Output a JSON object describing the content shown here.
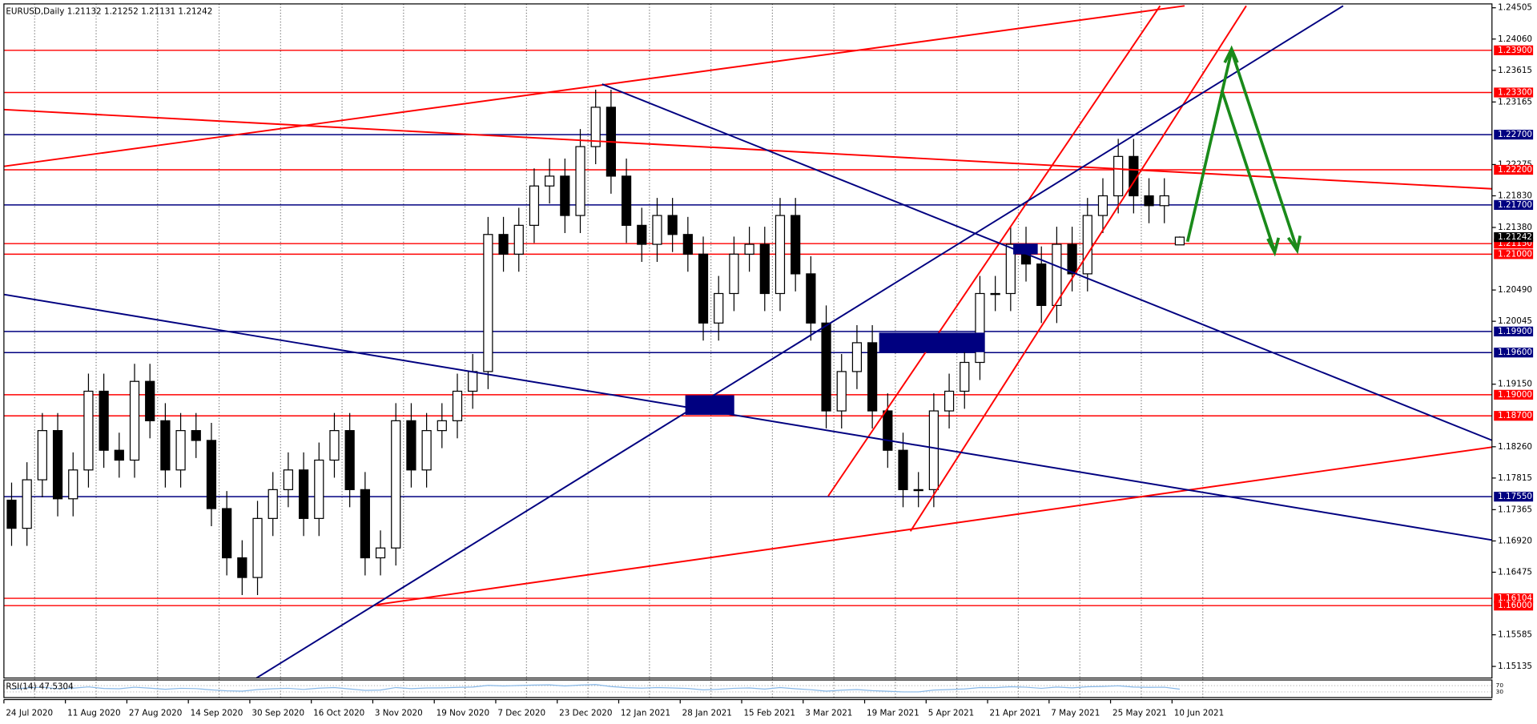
{
  "chart_data": {
    "type": "candlestick",
    "title": "EURUSD,Daily",
    "categories": [
      "24 Jul 2020",
      null,
      null,
      null,
      "11 Aug 2020",
      null,
      null,
      null,
      "27 Aug 2020",
      null,
      null,
      null,
      "14 Sep 2020",
      null,
      null,
      null,
      "30 Sep 2020",
      null,
      null,
      null,
      "16 Oct 2020",
      null,
      null,
      null,
      "3 Nov 2020",
      null,
      null,
      null,
      "19 Nov 2020",
      null,
      null,
      null,
      "7 Dec 2020",
      null,
      null,
      null,
      "23 Dec 2020",
      null,
      null,
      null,
      "12 Jan 2021",
      null,
      null,
      null,
      "28 Jan 2021",
      null,
      null,
      null,
      "15 Feb 2021",
      null,
      null,
      null,
      "3 Mar 2021",
      null,
      null,
      null,
      "19 Mar 2021",
      null,
      null,
      null,
      "5 Apr 2021",
      null,
      null,
      null,
      "21 Apr 2021",
      null,
      null,
      null,
      "7 May 2021",
      null,
      null,
      null,
      "25 May 2021",
      null,
      null,
      null,
      "10 Jun 2021"
    ],
    "open": [
      1.175,
      1.171,
      1.1779,
      1.1849,
      1.1752,
      1.1793,
      1.1905,
      1.1821,
      1.1807,
      1.1919,
      1.1863,
      1.1793,
      1.1849,
      1.1835,
      1.1738,
      1.1668,
      1.164,
      1.1724,
      1.1765,
      1.1793,
      1.1724,
      1.1807,
      1.1849,
      1.1765,
      1.1668,
      1.1682,
      1.1863,
      1.1793,
      1.1849,
      1.1863,
      1.1905,
      1.1933,
      1.2128,
      1.21,
      1.2141,
      1.2197,
      1.2211,
      1.2155,
      1.2253,
      1.2309,
      1.2211,
      1.2141,
      1.2114,
      1.2155,
      1.2128,
      1.21,
      1.2002,
      1.2044,
      1.21,
      1.2114,
      1.2044,
      1.2155,
      1.2072,
      1.2002,
      1.1877,
      1.1933,
      1.1974,
      1.1877,
      1.1821,
      1.1765,
      1.1765,
      1.1877,
      1.1905,
      1.1946,
      1.2044,
      1.2044,
      1.2114,
      1.2086,
      1.2027,
      1.2114,
      1.2072,
      1.2155,
      1.2183,
      1.2239,
      1.2183,
      1.2169,
      1.21132
    ],
    "high": [
      1.1775,
      1.1804,
      1.1874,
      1.1874,
      1.1818,
      1.193,
      1.193,
      1.1846,
      1.1944,
      1.1944,
      1.1888,
      1.1874,
      1.1874,
      1.186,
      1.1763,
      1.1693,
      1.1749,
      1.179,
      1.1818,
      1.1818,
      1.1832,
      1.1874,
      1.1874,
      1.179,
      1.1707,
      1.1888,
      1.1888,
      1.1874,
      1.1888,
      1.193,
      1.1958,
      1.2153,
      1.2153,
      1.2166,
      1.2222,
      1.2236,
      1.2236,
      1.2278,
      1.2334,
      1.2334,
      1.2236,
      1.2166,
      1.218,
      1.218,
      1.2153,
      1.2125,
      1.2069,
      1.2125,
      1.2139,
      1.2139,
      1.218,
      1.218,
      1.2097,
      1.2027,
      1.1958,
      1.1999,
      1.1999,
      1.1902,
      1.1846,
      1.179,
      1.1902,
      1.193,
      1.1971,
      1.2069,
      1.2069,
      1.2139,
      1.2139,
      1.2111,
      1.2139,
      1.2139,
      1.218,
      1.2208,
      1.2264,
      1.2264,
      1.2208,
      1.2208,
      1.21252
    ],
    "low": [
      1.1685,
      1.1685,
      1.1754,
      1.1727,
      1.1727,
      1.1768,
      1.1796,
      1.1782,
      1.1782,
      1.1838,
      1.1768,
      1.1768,
      1.181,
      1.1713,
      1.1643,
      1.1615,
      1.1615,
      1.1699,
      1.174,
      1.1699,
      1.1699,
      1.1782,
      1.174,
      1.1643,
      1.1643,
      1.1657,
      1.1768,
      1.1768,
      1.1824,
      1.1838,
      1.188,
      1.1908,
      1.2075,
      1.2075,
      1.2116,
      1.2172,
      1.213,
      1.213,
      1.2228,
      1.2186,
      1.2116,
      1.2089,
      1.2089,
      1.2103,
      1.2075,
      1.1977,
      1.1977,
      1.2019,
      1.2075,
      1.2019,
      1.2019,
      1.2047,
      1.1977,
      1.1852,
      1.1852,
      1.1908,
      1.1852,
      1.1796,
      1.174,
      1.174,
      1.174,
      1.1852,
      1.188,
      1.1921,
      1.2019,
      1.2019,
      1.2061,
      1.2002,
      1.2002,
      1.2047,
      1.2047,
      1.213,
      1.2158,
      1.2158,
      1.2144,
      1.2144,
      1.21131
    ],
    "close": [
      1.171,
      1.1779,
      1.1849,
      1.1752,
      1.1793,
      1.1905,
      1.1821,
      1.1807,
      1.1919,
      1.1863,
      1.1793,
      1.1849,
      1.1835,
      1.1738,
      1.1668,
      1.164,
      1.1724,
      1.1765,
      1.1793,
      1.1724,
      1.1807,
      1.1849,
      1.1765,
      1.1668,
      1.1682,
      1.1863,
      1.1793,
      1.1849,
      1.1863,
      1.1905,
      1.1933,
      1.2128,
      1.21,
      1.2141,
      1.2197,
      1.2211,
      1.2155,
      1.2253,
      1.2309,
      1.2211,
      1.2141,
      1.2114,
      1.2155,
      1.2128,
      1.21,
      1.2002,
      1.2044,
      1.21,
      1.2114,
      1.2044,
      1.2155,
      1.2072,
      1.2002,
      1.1877,
      1.1933,
      1.1974,
      1.1877,
      1.1821,
      1.1765,
      1.1765,
      1.1877,
      1.1905,
      1.1946,
      1.2044,
      1.2044,
      1.2114,
      1.2086,
      1.2027,
      1.2114,
      1.2072,
      1.2155,
      1.2183,
      1.2239,
      1.2183,
      1.2169,
      1.2183,
      1.21242
    ],
    "up_color": "#ffffff",
    "down_color": "#000000",
    "ylim": [
      1.1497,
      1.2456
    ],
    "yticks": [
      1.24505,
      {
        "value": 1.2406,
        "label": "1.24060"
      },
      1.23615,
      1.23165,
      1.22275,
      {
        "value": 1.2183,
        "label": "1.21830"
      },
      {
        "value": 1.2138,
        "label": "1.21380"
      },
      {
        "value": 1.2049,
        "label": "1.20490"
      },
      1.20045,
      {
        "value": 1.1915,
        "label": "1.19150"
      },
      {
        "value": 1.1826,
        "label": "1.18260"
      },
      1.17815,
      1.17365,
      {
        "value": 1.1692,
        "label": "1.16920"
      },
      1.16475,
      1.15585,
      1.15135
    ],
    "levels": [
      {
        "value": 1.239,
        "label": "1.23900",
        "color": "#ff0000"
      },
      {
        "value": 1.233,
        "label": "1.23300",
        "color": "#ff0000"
      },
      {
        "value": 1.227,
        "label": "1.22700",
        "color": "#000080"
      },
      {
        "value": 1.222,
        "label": "1.22200",
        "color": "#ff0000"
      },
      {
        "value": 1.217,
        "label": "1.21700",
        "color": "#000080"
      },
      {
        "value": 1.2115,
        "label": "1.21150",
        "color": "#ff0000"
      },
      {
        "value": 1.21,
        "label": "1.21000",
        "color": "#ff0000"
      },
      {
        "value": 1.199,
        "label": "1.19900",
        "color": "#000080"
      },
      {
        "value": 1.196,
        "label": "1.19600",
        "color": "#000080"
      },
      {
        "value": 1.19,
        "label": "1.19000",
        "color": "#ff0000"
      },
      {
        "value": 1.187,
        "label": "1.18700",
        "color": "#ff0000"
      },
      {
        "value": 1.1755,
        "label": "1.17550",
        "color": "#000080"
      },
      {
        "value": 1.16104,
        "color": "#ff0000"
      },
      {
        "value": 1.16,
        "label": "1.16000",
        "color": "#ff0000"
      }
    ],
    "rsi": {
      "name": "RSI(14)",
      "color": "#87b8e8",
      "ylim": [
        0,
        100
      ],
      "yticks": [
        30,
        70
      ],
      "values": [
        48,
        55,
        60,
        50,
        54,
        62,
        52,
        50,
        60,
        54,
        47,
        53,
        51,
        43,
        37,
        35,
        45,
        50,
        53,
        46,
        54,
        58,
        49,
        40,
        42,
        58,
        51,
        55,
        56,
        59,
        61,
        72,
        68,
        71,
        74,
        75,
        68,
        74,
        77,
        64,
        57,
        54,
        58,
        55,
        52,
        43,
        47,
        53,
        55,
        48,
        58,
        50,
        44,
        35,
        41,
        45,
        38,
        34,
        30,
        30,
        42,
        45,
        49,
        58,
        57,
        63,
        60,
        53,
        61,
        56,
        63,
        65,
        69,
        61,
        59,
        60,
        47.5304
      ]
    }
  }
}
